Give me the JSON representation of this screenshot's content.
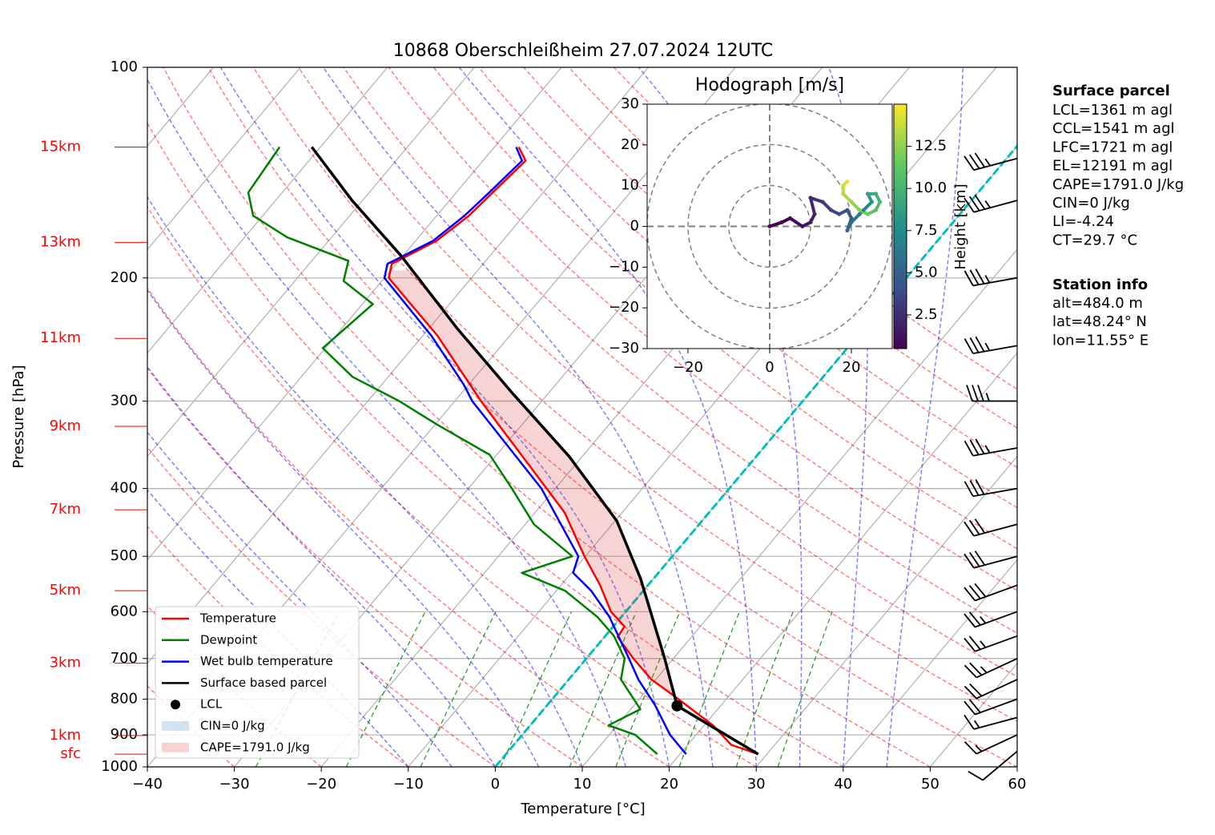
{
  "chart_data": [
    {
      "type": "skewt",
      "title": "10868 Oberschleißheim 27.07.2024 12UTC",
      "xlabel": "Temperature [°C]",
      "ylabel": "Pressure [hPa]",
      "xlim": [
        -40,
        60
      ],
      "xticks": [
        {
          "value": -40,
          "label": "−40"
        },
        {
          "value": -30,
          "label": "−30"
        },
        {
          "value": -20,
          "label": "−20"
        },
        {
          "value": -10,
          "label": "−10"
        },
        0,
        10,
        20,
        30,
        40,
        50,
        60
      ],
      "ylim": [
        1000,
        100
      ],
      "log_y": true,
      "yticks": [
        100,
        200,
        300,
        400,
        500,
        600,
        700,
        800,
        900,
        1000
      ],
      "grid": true,
      "isotherms": [
        -130,
        -120,
        -110,
        -100,
        -90,
        -80,
        -70,
        -60,
        -50
      ],
      "zero_isotherm_color": "#00bfbf",
      "dry_adiabats": [
        -30,
        -20,
        -10,
        0,
        10,
        20,
        30,
        40,
        50,
        60,
        70,
        80,
        90,
        100,
        110,
        120,
        130,
        140,
        150
      ],
      "moist_adiabats": [
        -10,
        -5,
        0,
        5,
        10,
        15,
        20,
        25,
        30,
        35,
        40,
        45
      ],
      "mixing_ratios": [
        0.4,
        1,
        2,
        4,
        7,
        10,
        16,
        24,
        32
      ],
      "mixing_ratio_top": 600,
      "series": [
        {
          "name": "Temperature",
          "color": "#ff0000",
          "pressure": [
            959,
            930,
            872,
            800,
            750,
            700,
            652,
            630,
            600,
            550,
            500,
            433,
            400,
            333,
            300,
            242,
            200,
            191,
            177,
            163,
            151,
            136,
            130
          ],
          "values": [
            29,
            25,
            21,
            14.5,
            9.5,
            5.4,
            1.5,
            1.3,
            -1.7,
            -5.5,
            -10.1,
            -16.6,
            -21,
            -31.2,
            -37,
            -48.3,
            -59.5,
            -60.5,
            -57.6,
            -56.3,
            -55.8,
            -55.1,
            -57.2
          ]
        },
        {
          "name": "Dewpoint",
          "color": "#008000",
          "pressure": [
            959,
            900,
            872,
            827,
            750,
            700,
            650,
            610,
            560,
            528,
            500,
            450,
            400,
            358,
            324,
            300,
            277,
            252,
            218,
            202,
            189,
            175,
            163,
            151,
            130
          ],
          "values": [
            17.4,
            13,
            9,
            11.1,
            6,
            4.4,
            1,
            -2.8,
            -9,
            -15.7,
            -11.5,
            -19,
            -25,
            -30.8,
            -39.8,
            -46.4,
            -54.1,
            -60.3,
            -58.8,
            -64.4,
            -65.8,
            -75.1,
            -81.1,
            -83.9,
            -84.7
          ]
        },
        {
          "name": "Wet bulb temperature",
          "color": "#0000ff",
          "pressure": [
            959,
            900,
            816,
            750,
            700,
            610,
            560,
            528,
            500,
            400,
            300,
            284,
            242,
            200,
            191,
            177,
            163,
            151,
            136,
            130
          ],
          "values": [
            20.7,
            17,
            12.4,
            8,
            4.9,
            -1.4,
            -6,
            -9.8,
            -10.8,
            -21.6,
            -38,
            -40.6,
            -49,
            -60,
            -61,
            -58,
            -56.8,
            -56.2,
            -55.5,
            -57.5
          ]
        },
        {
          "name": "Surface based parcel",
          "color": "#000000",
          "pressure": [
            959,
            818,
            700,
            538,
            445,
            360,
            292,
            236,
            186,
            155,
            130
          ],
          "values": [
            29,
            15,
            9,
            -1.5,
            -9.8,
            -21.5,
            -34.2,
            -46.8,
            -60.2,
            -71.2,
            -81
          ]
        }
      ],
      "lcl": {
        "name": "LCL",
        "pressure": 818,
        "value": 15
      },
      "shading": [
        {
          "name": "CIN=0 J/kg",
          "color": "#1f77b4"
        },
        {
          "name": "CAPE=1791.0 J/kg",
          "color": "#d62728"
        }
      ],
      "cape_pressures": [
        812,
        195
      ],
      "heights": [
        {
          "label": "15km",
          "pressure": 130
        },
        {
          "label": "13km",
          "pressure": 178
        },
        {
          "label": "11km",
          "pressure": 244
        },
        {
          "label": "9km",
          "pressure": 326
        },
        {
          "label": "7km",
          "pressure": 429
        },
        {
          "label": "5km",
          "pressure": 560
        },
        {
          "label": "3km",
          "pressure": 711
        },
        {
          "label": "1km",
          "pressure": 902
        },
        {
          "label": "sfc",
          "pressure": 959
        }
      ],
      "height_color": "#ff0000",
      "wind": {
        "pressure": [
          135,
          155,
          200,
          250,
          300,
          350,
          400,
          450,
          500,
          550,
          600,
          650,
          700,
          750,
          800,
          850,
          900,
          950
        ],
        "direction": [
          255,
          255,
          260,
          260,
          270,
          260,
          260,
          255,
          255,
          250,
          250,
          250,
          245,
          245,
          250,
          255,
          245,
          230
        ],
        "speed": [
          35,
          35,
          35,
          35,
          35,
          35,
          30,
          30,
          30,
          30,
          25,
          25,
          25,
          20,
          20,
          15,
          15,
          10
        ]
      }
    },
    {
      "type": "hodograph",
      "title": "Hodograph [m/s]",
      "xlim": [
        -30,
        30
      ],
      "ylim": [
        -30,
        30
      ],
      "xticks": [
        {
          "value": -20,
          "label": "−20"
        },
        0,
        20
      ],
      "yticks": [
        {
          "value": -30,
          "label": "−30"
        },
        {
          "value": -20,
          "label": "−20"
        },
        {
          "value": -10,
          "label": "−10"
        },
        0,
        10,
        20,
        30
      ],
      "rings": [
        10,
        20,
        30
      ],
      "u": [
        0,
        3,
        5,
        8,
        10,
        11,
        10,
        13,
        15,
        17,
        19,
        20,
        19,
        20,
        22,
        23,
        25,
        24,
        26,
        27,
        26,
        24,
        22,
        20,
        18,
        18,
        19
      ],
      "v": [
        0,
        1,
        2,
        0,
        1,
        3,
        7,
        6,
        4,
        3,
        4,
        2,
        -1,
        1,
        3,
        4,
        6,
        8,
        8,
        6,
        4,
        3,
        4,
        6,
        8,
        10,
        11
      ],
      "height": [
        0.1,
        0.5,
        0.8,
        1.2,
        1.6,
        2.0,
        2.4,
        2.8,
        3.3,
        3.8,
        4.3,
        4.8,
        5.3,
        5.8,
        6.5,
        7.2,
        8.0,
        8.8,
        9.5,
        10.2,
        10.9,
        11.5,
        12.2,
        12.8,
        13.4,
        14.0,
        14.5
      ],
      "colorbar": {
        "label": "Height [km]",
        "lim": [
          0.5,
          15
        ],
        "ticks": [
          2.5,
          {
            "value": 5,
            "label": "5.0"
          },
          7.5,
          {
            "value": 10,
            "label": "10.0"
          },
          12.5
        ]
      }
    }
  ],
  "info": {
    "parcel_title": "Surface parcel",
    "parcel_lines": [
      "LCL=1361 m agl",
      "CCL=1541 m agl",
      "LFC=1721 m agl",
      "EL=12191 m agl",
      "CAPE=1791.0 J/kg",
      "CIN=0 J/kg",
      "LI=-4.24",
      "CT=29.7 °C"
    ],
    "station_title": "Station info",
    "station_lines": [
      "alt=484.0 m",
      "lat=48.24° N",
      "lon=11.55° E"
    ]
  }
}
